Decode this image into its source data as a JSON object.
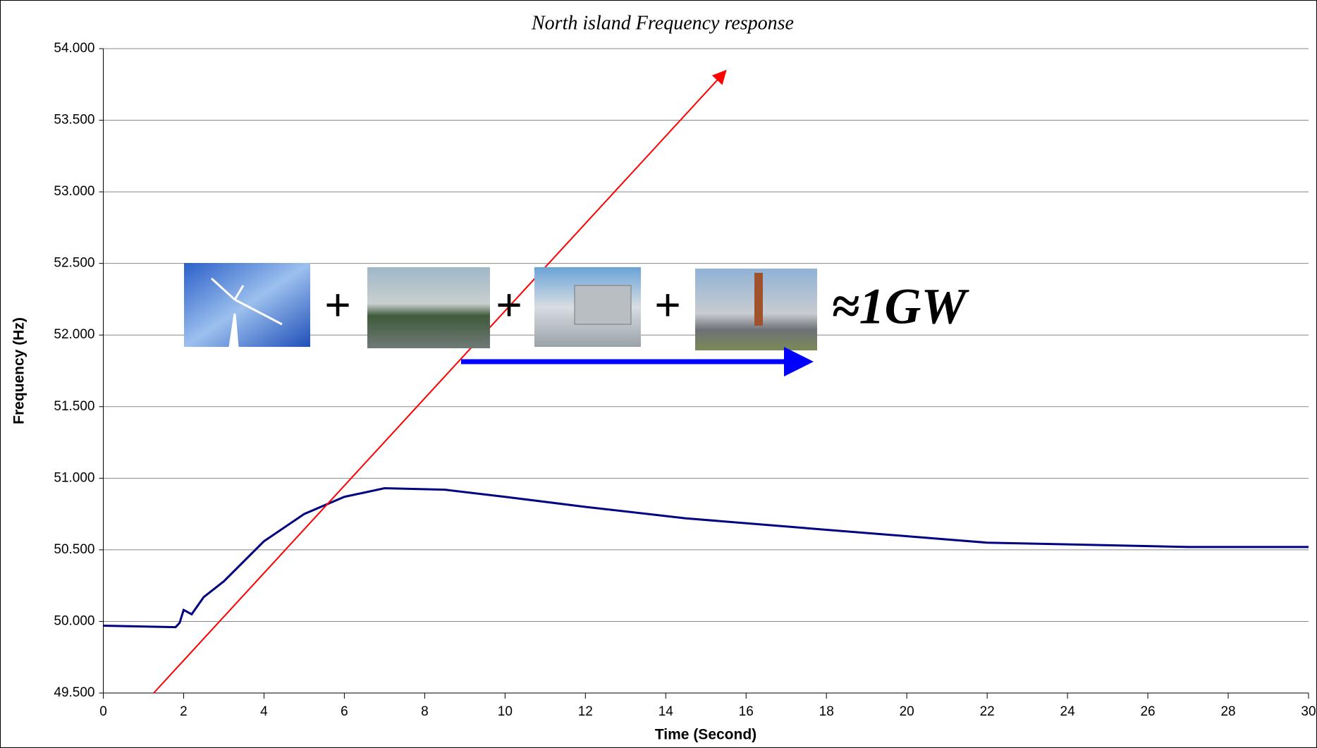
{
  "chart_data": {
    "type": "line",
    "title": "North island Frequency response",
    "x_label": "Time (Second)",
    "y_label": "Frequency (Hz)",
    "x": [
      0,
      1.8,
      1.9,
      2.0,
      2.2,
      2.5,
      3,
      4,
      5,
      6,
      7,
      8.5,
      10,
      12,
      14.5,
      18,
      22,
      27,
      30
    ],
    "series": [
      {
        "name": "Frequency",
        "color": "#000080",
        "values": [
          49.97,
          49.96,
          49.99,
          50.08,
          50.05,
          50.17,
          50.28,
          50.56,
          50.75,
          50.87,
          50.93,
          50.92,
          50.87,
          50.8,
          50.72,
          50.64,
          50.55,
          50.52,
          50.52
        ]
      }
    ],
    "xlim": [
      0,
      30
    ],
    "xticks": [
      0,
      2,
      4,
      6,
      8,
      10,
      12,
      14,
      16,
      18,
      20,
      22,
      24,
      26,
      28,
      30
    ],
    "ylim": [
      49.5,
      54
    ],
    "yticks": [
      {
        "value": 49.5,
        "label": "49.500"
      },
      {
        "value": 50,
        "label": "50.000"
      },
      {
        "value": 50.5,
        "label": "50.500"
      },
      {
        "value": 51,
        "label": "51.000"
      },
      {
        "value": 51.5,
        "label": "51.500"
      },
      {
        "value": 52,
        "label": "52.000"
      },
      {
        "value": 52.5,
        "label": "52.500"
      },
      {
        "value": 53,
        "label": "53.000"
      },
      {
        "value": 53.5,
        "label": "53.500"
      },
      {
        "value": 54,
        "label": "54.000"
      }
    ],
    "grid": true
  },
  "annotations": [
    "+",
    "+",
    "+",
    "≈1GW"
  ]
}
